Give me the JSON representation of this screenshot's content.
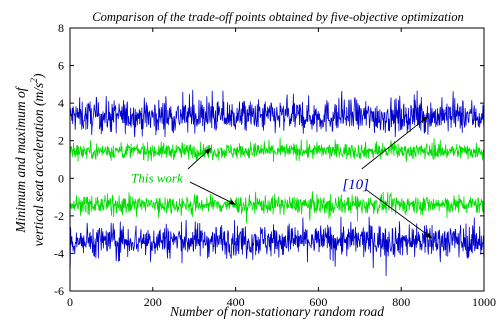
{
  "chart_data": {
    "type": "line",
    "title": "Comparison of the trade-off points obtained by five-objective optimization",
    "xlabel": "Number of non-stationary random road",
    "ylabel_line1": "Minimum and maximum of",
    "ylabel_line2": "vertical seat acceleration (m/s",
    "ylabel_sup": "2",
    "ylabel_close": ")",
    "xlim": [
      0,
      1000
    ],
    "ylim": [
      -6,
      8
    ],
    "x_ticks": [
      "0",
      "200",
      "400",
      "600",
      "800",
      "1000"
    ],
    "y_ticks": [
      "-6",
      "-4",
      "-2",
      "0",
      "2",
      "4",
      "6",
      "8"
    ],
    "grid": false,
    "n_points": 1000,
    "series": [
      {
        "name": "[10]",
        "bound": "max",
        "color": "#0000cc",
        "mean": 3.3,
        "spread": 0.45,
        "min": 2.2,
        "max": 6.1
      },
      {
        "name": "This work",
        "bound": "max",
        "color": "#00dd00",
        "mean": 1.45,
        "spread": 0.22,
        "min": 0.7,
        "max": 2.2
      },
      {
        "name": "This work",
        "bound": "min",
        "color": "#00dd00",
        "mean": -1.4,
        "spread": 0.25,
        "min": -2.4,
        "max": -0.4
      },
      {
        "name": "[10]",
        "bound": "min",
        "color": "#0000cc",
        "mean": -3.3,
        "spread": 0.45,
        "min": -5.2,
        "max": -1.6
      }
    ],
    "annotations": [
      {
        "text": "This work",
        "color": "#00cc00",
        "label_x": 210,
        "label_y": 0,
        "arrows": [
          {
            "from": [
              285,
              0.5
            ],
            "to": [
              340,
              1.6
            ]
          },
          {
            "from": [
              290,
              -0.2
            ],
            "to": [
              400,
              -1.4
            ]
          }
        ]
      },
      {
        "text": "[10]",
        "color": "#0000cc",
        "label_x": 690,
        "label_y": -0.35,
        "arrows": [
          {
            "from": [
              705,
              0.5
            ],
            "to": [
              865,
              3.3
            ]
          },
          {
            "from": [
              715,
              -0.6
            ],
            "to": [
              875,
              -3.2
            ]
          }
        ]
      }
    ]
  }
}
